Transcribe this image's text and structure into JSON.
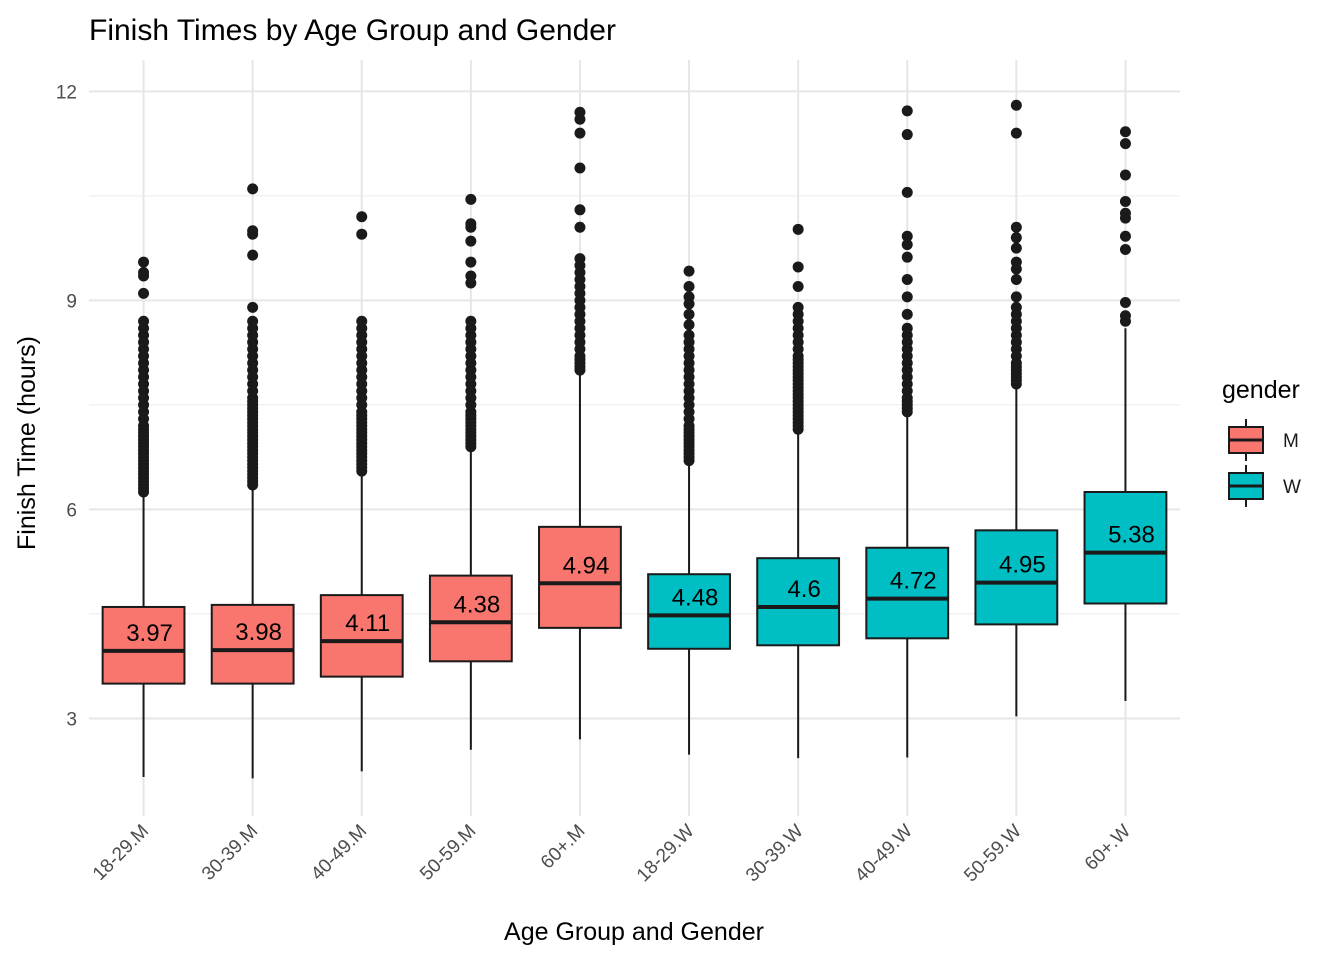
{
  "chart_data": {
    "type": "boxplot",
    "title": "Finish Times by Age Group and Gender",
    "xlabel": "Age Group and Gender",
    "ylabel": "Finish Time (hours)",
    "ylim": [
      1.6,
      12.45
    ],
    "yticks": [
      3,
      6,
      9,
      12
    ],
    "grid": true,
    "legend": {
      "title": "gender",
      "position": "right",
      "entries": [
        {
          "label": "M",
          "color": "#F8766D"
        },
        {
          "label": "W",
          "color": "#00BFC4"
        }
      ]
    },
    "colors": {
      "M": "#F8766D",
      "W": "#00BFC4"
    },
    "categories": [
      "18-29.M",
      "30-39.M",
      "40-49.M",
      "50-59.M",
      "60+.M",
      "18-29.W",
      "30-39.W",
      "40-49.W",
      "50-59.W",
      "60+.W"
    ],
    "boxes": [
      {
        "category": "18-29.M",
        "gender": "M",
        "whisker_low": 2.16,
        "q1": 3.5,
        "median": 3.97,
        "q3": 4.6,
        "whisker_high": 6.2,
        "median_label": "3.97",
        "outliers": [
          6.25,
          6.3,
          6.35,
          6.4,
          6.45,
          6.5,
          6.55,
          6.6,
          6.65,
          6.7,
          6.75,
          6.8,
          6.85,
          6.9,
          6.95,
          7.0,
          7.05,
          7.1,
          7.15,
          7.2,
          7.3,
          7.4,
          7.5,
          7.6,
          7.7,
          7.8,
          7.9,
          8.0,
          8.1,
          8.2,
          8.3,
          8.4,
          8.5,
          8.6,
          8.7,
          9.1,
          9.35,
          9.4,
          9.55
        ]
      },
      {
        "category": "30-39.M",
        "gender": "M",
        "whisker_low": 2.14,
        "q1": 3.5,
        "median": 3.98,
        "q3": 4.63,
        "whisker_high": 6.3,
        "median_label": "3.98",
        "outliers": [
          6.35,
          6.4,
          6.45,
          6.5,
          6.55,
          6.6,
          6.65,
          6.7,
          6.75,
          6.8,
          6.85,
          6.9,
          6.95,
          7.0,
          7.05,
          7.1,
          7.15,
          7.2,
          7.25,
          7.3,
          7.35,
          7.4,
          7.45,
          7.5,
          7.55,
          7.6,
          7.7,
          7.8,
          7.9,
          8.0,
          8.1,
          8.2,
          8.3,
          8.4,
          8.5,
          8.6,
          8.7,
          8.9,
          9.65,
          9.95,
          10.0,
          10.6
        ]
      },
      {
        "category": "40-49.M",
        "gender": "M",
        "whisker_low": 2.24,
        "q1": 3.6,
        "median": 4.11,
        "q3": 4.77,
        "whisker_high": 6.5,
        "median_label": "4.11",
        "outliers": [
          6.55,
          6.6,
          6.65,
          6.7,
          6.75,
          6.8,
          6.85,
          6.9,
          6.95,
          7.0,
          7.05,
          7.1,
          7.15,
          7.2,
          7.25,
          7.3,
          7.35,
          7.4,
          7.5,
          7.6,
          7.7,
          7.8,
          7.9,
          8.0,
          8.1,
          8.2,
          8.3,
          8.4,
          8.5,
          8.6,
          8.7,
          9.95,
          10.2
        ]
      },
      {
        "category": "50-59.M",
        "gender": "M",
        "whisker_low": 2.55,
        "q1": 3.82,
        "median": 4.38,
        "q3": 5.05,
        "whisker_high": 6.85,
        "median_label": "4.38",
        "outliers": [
          6.9,
          6.95,
          7.0,
          7.05,
          7.1,
          7.15,
          7.2,
          7.25,
          7.3,
          7.35,
          7.4,
          7.5,
          7.6,
          7.7,
          7.8,
          7.9,
          8.0,
          8.1,
          8.2,
          8.3,
          8.4,
          8.5,
          8.6,
          8.7,
          9.25,
          9.35,
          9.55,
          9.85,
          10.05,
          10.1,
          10.45
        ]
      },
      {
        "category": "60+.M",
        "gender": "M",
        "whisker_low": 2.7,
        "q1": 4.3,
        "median": 4.94,
        "q3": 5.75,
        "whisker_high": 7.95,
        "median_label": "4.94",
        "outliers": [
          8.0,
          8.05,
          8.1,
          8.15,
          8.2,
          8.3,
          8.4,
          8.5,
          8.6,
          8.7,
          8.8,
          8.9,
          9.0,
          9.1,
          9.2,
          9.3,
          9.4,
          9.5,
          9.6,
          10.05,
          10.3,
          10.9,
          11.4,
          11.6,
          11.7
        ]
      },
      {
        "category": "18-29.W",
        "gender": "W",
        "whisker_low": 2.48,
        "q1": 4.0,
        "median": 4.48,
        "q3": 5.07,
        "whisker_high": 6.65,
        "median_label": "4.48",
        "outliers": [
          6.7,
          6.75,
          6.8,
          6.85,
          6.9,
          6.95,
          7.0,
          7.05,
          7.1,
          7.15,
          7.2,
          7.3,
          7.4,
          7.5,
          7.6,
          7.7,
          7.8,
          7.9,
          8.0,
          8.1,
          8.2,
          8.3,
          8.4,
          8.5,
          8.65,
          8.8,
          8.95,
          9.05,
          9.2,
          9.42
        ]
      },
      {
        "category": "30-39.W",
        "gender": "W",
        "whisker_low": 2.43,
        "q1": 4.05,
        "median": 4.6,
        "q3": 5.3,
        "whisker_high": 7.1,
        "median_label": "4.6",
        "outliers": [
          7.15,
          7.2,
          7.25,
          7.3,
          7.35,
          7.4,
          7.45,
          7.5,
          7.55,
          7.6,
          7.65,
          7.7,
          7.75,
          7.8,
          7.85,
          7.9,
          7.95,
          8.0,
          8.05,
          8.1,
          8.15,
          8.2,
          8.3,
          8.4,
          8.5,
          8.6,
          8.7,
          8.8,
          8.9,
          9.2,
          9.48,
          10.02
        ]
      },
      {
        "category": "40-49.W",
        "gender": "W",
        "whisker_low": 2.44,
        "q1": 4.15,
        "median": 4.72,
        "q3": 5.45,
        "whisker_high": 7.35,
        "median_label": "4.72",
        "outliers": [
          7.4,
          7.45,
          7.5,
          7.55,
          7.6,
          7.7,
          7.8,
          7.9,
          8.0,
          8.1,
          8.2,
          8.3,
          8.4,
          8.5,
          8.6,
          8.8,
          9.05,
          9.3,
          9.62,
          9.8,
          9.92,
          10.55,
          11.38,
          11.72
        ]
      },
      {
        "category": "50-59.W",
        "gender": "W",
        "whisker_low": 3.03,
        "q1": 4.35,
        "median": 4.95,
        "q3": 5.7,
        "whisker_high": 7.75,
        "median_label": "4.95",
        "outliers": [
          7.8,
          7.85,
          7.9,
          7.95,
          8.0,
          8.05,
          8.1,
          8.2,
          8.3,
          8.4,
          8.5,
          8.6,
          8.7,
          8.8,
          8.9,
          9.05,
          9.3,
          9.45,
          9.55,
          9.75,
          9.9,
          10.05,
          11.4,
          11.8
        ]
      },
      {
        "category": "60+.W",
        "gender": "W",
        "whisker_low": 3.25,
        "q1": 4.65,
        "median": 5.38,
        "q3": 6.25,
        "whisker_high": 8.6,
        "median_label": "5.38",
        "outliers": [
          8.7,
          8.78,
          8.97,
          9.73,
          9.92,
          10.18,
          10.25,
          10.42,
          10.8,
          11.25,
          11.42
        ]
      }
    ]
  }
}
